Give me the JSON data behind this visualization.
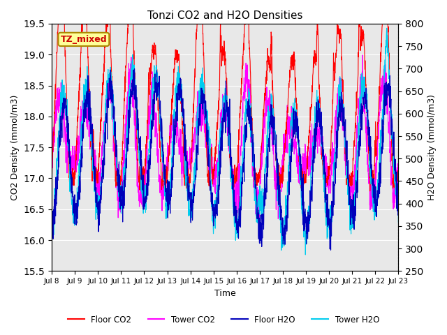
{
  "title": "Tonzi CO2 and H2O Densities",
  "xlabel": "Time",
  "ylabel_left": "CO2 Density (mmol/m3)",
  "ylabel_right": "H2O Density (mmol/m3)",
  "annotation_text": "TZ_mixed",
  "annotation_color": "#cc0000",
  "annotation_bg": "#ffff99",
  "annotation_border": "#aa8800",
  "x_tick_labels": [
    "Jul 8",
    "Jul 9",
    "Jul 10",
    "Jul 11",
    "Jul 12",
    "Jul 13",
    "Jul 14",
    "Jul 15",
    "Jul 16",
    "Jul 17",
    "Jul 18",
    "Jul 19",
    "Jul 20",
    "Jul 21",
    "Jul 22",
    "Jul 23"
  ],
  "ylim_left": [
    15.5,
    19.5
  ],
  "ylim_right": [
    250,
    800
  ],
  "yticks_left": [
    15.5,
    16.0,
    16.5,
    17.0,
    17.5,
    18.0,
    18.5,
    19.0,
    19.5
  ],
  "yticks_right": [
    250,
    300,
    350,
    400,
    450,
    500,
    550,
    600,
    650,
    700,
    750,
    800
  ],
  "colors": {
    "floor_co2": "#ff0000",
    "tower_co2": "#ff00ff",
    "floor_h2o": "#0000bb",
    "tower_h2o": "#00ccee"
  },
  "legend_labels": [
    "Floor CO2",
    "Tower CO2",
    "Floor H2O",
    "Tower H2O"
  ],
  "background_inner": "#e8e8e8",
  "background_outer": "#ffffff",
  "grid_color": "#ffffff",
  "seed": 123,
  "n_points": 2000,
  "days": 15,
  "lw": 0.8
}
